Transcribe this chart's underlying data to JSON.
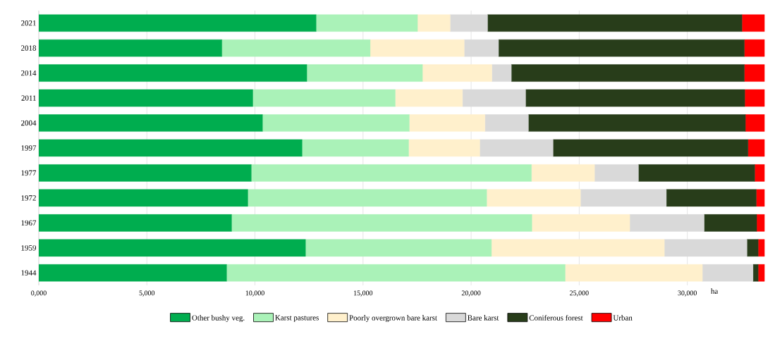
{
  "chart_data": {
    "type": "bar",
    "orientation": "horizontal",
    "stacked": true,
    "xlabel": "ha",
    "categories": [
      "2021",
      "2018",
      "2014",
      "2011",
      "2004",
      "1997",
      "1977",
      "1972",
      "1967",
      "1959",
      "1944"
    ],
    "series": [
      {
        "name": "Other bushy veg.",
        "color": "#00ad4f",
        "values": [
          12830,
          8470,
          12400,
          9900,
          10350,
          12180,
          9830,
          9670,
          8920,
          12340,
          8690
        ]
      },
      {
        "name": "Karst pastures",
        "color": "#aaf2b8",
        "values": [
          4690,
          6860,
          5350,
          6590,
          6790,
          4930,
          12960,
          11050,
          13890,
          8600,
          15660
        ]
      },
      {
        "name": "Poorly overgrown bare karst",
        "color": "#fff0cc",
        "values": [
          1510,
          4350,
          3210,
          3110,
          3500,
          3290,
          2920,
          4340,
          4530,
          8000,
          6350
        ]
      },
      {
        "name": "Bare karst",
        "color": "#d9d9d9",
        "values": [
          1730,
          1590,
          900,
          2920,
          2010,
          3390,
          2030,
          3970,
          3440,
          3820,
          2340
        ]
      },
      {
        "name": "Coniferous forest",
        "color": "#283d1a",
        "values": [
          11770,
          11370,
          10780,
          10140,
          10040,
          9020,
          5380,
          4160,
          2430,
          520,
          240
        ]
      },
      {
        "name": "Urban",
        "color": "#ff0000",
        "values": [
          1040,
          930,
          930,
          910,
          880,
          760,
          450,
          380,
          360,
          290,
          290
        ]
      }
    ],
    "xlim": [
      0,
      33600
    ],
    "xticks": [
      {
        "value": 0,
        "label": "0,000"
      },
      {
        "value": 5000,
        "label": "5,000"
      },
      {
        "value": 10000,
        "label": "10,000"
      },
      {
        "value": 15000,
        "label": "15,000"
      },
      {
        "value": 20000,
        "label": "20,000"
      },
      {
        "value": 25000,
        "label": "25,000"
      },
      {
        "value": 30000,
        "label": "30,000"
      }
    ],
    "grid": "x",
    "legend": "bottom"
  }
}
